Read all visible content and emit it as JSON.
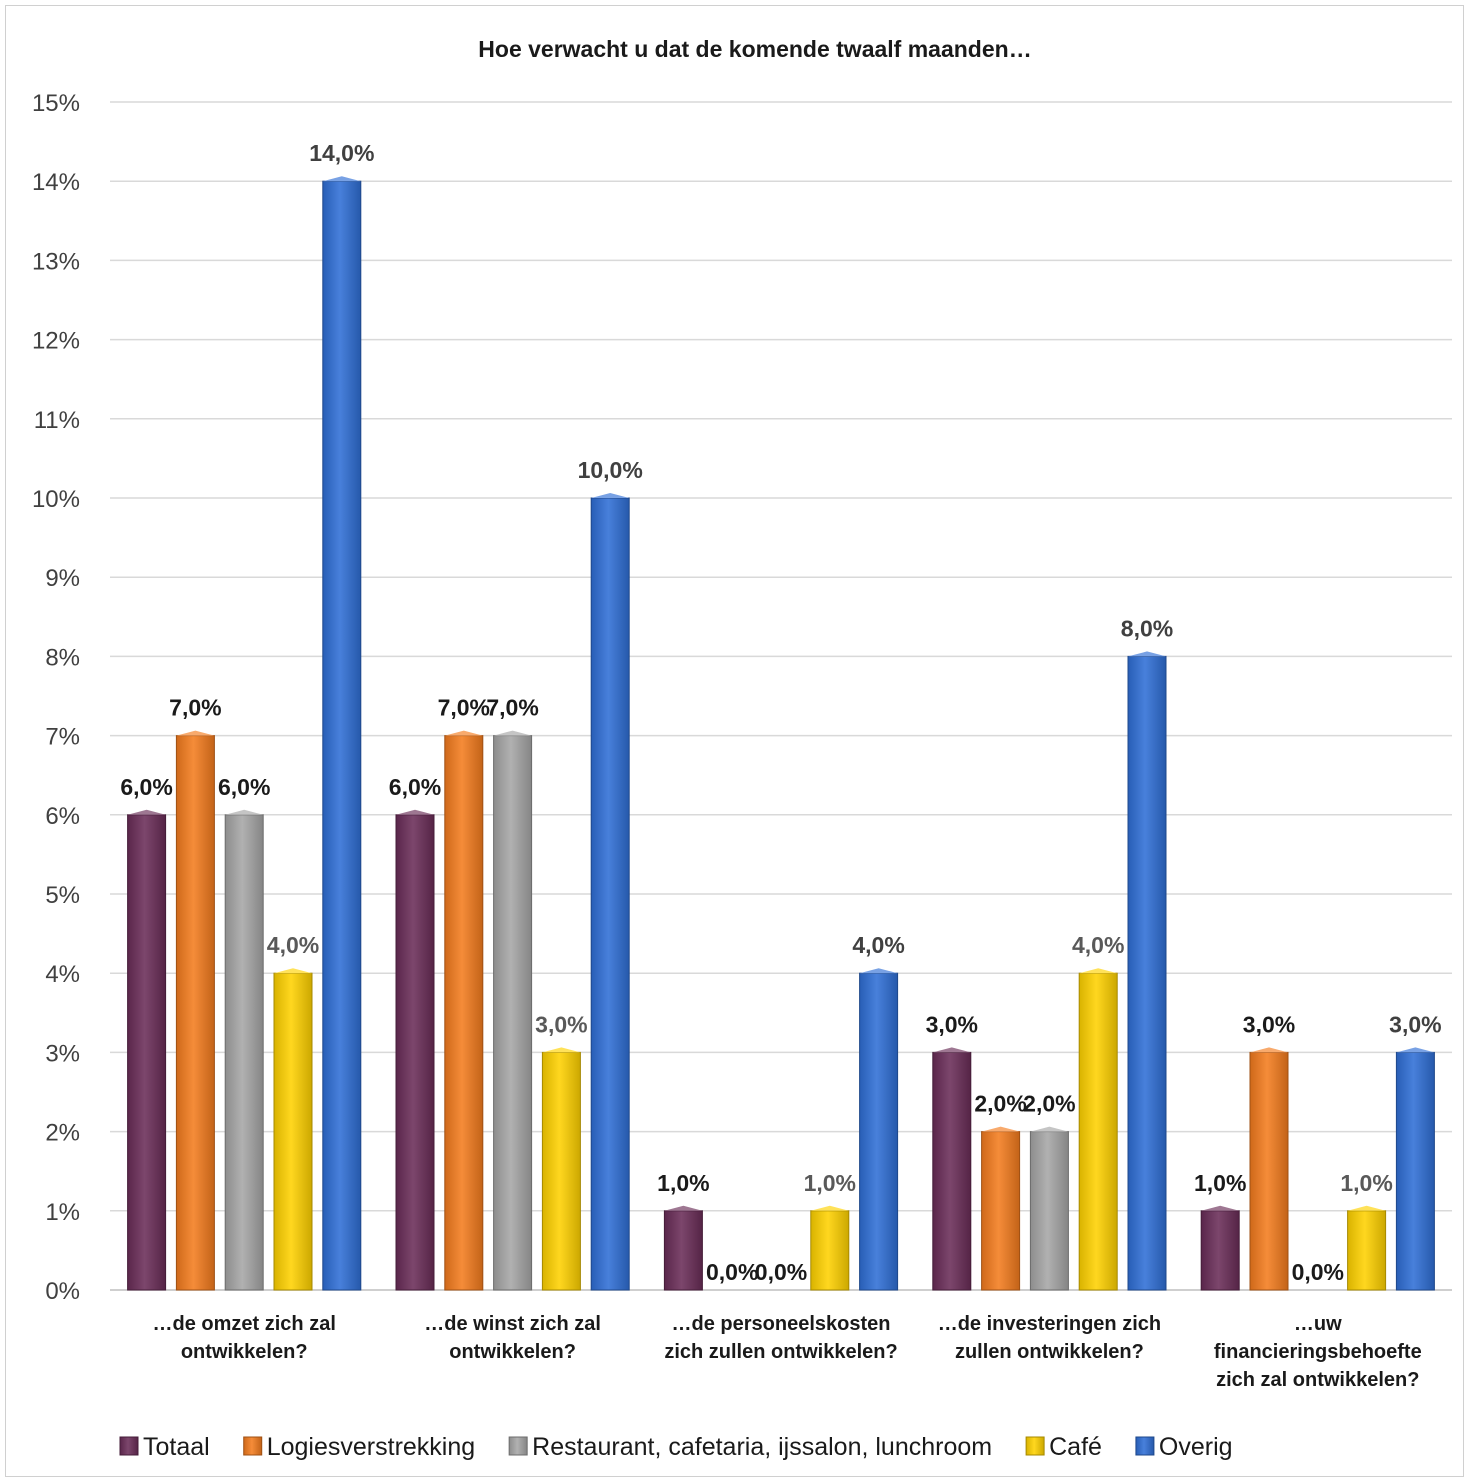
{
  "chart_data": {
    "type": "bar",
    "title": "Hoe verwacht u dat de komende twaalf maanden…",
    "xlabel": "",
    "ylabel": "",
    "ylim": [
      0,
      15
    ],
    "y_unit": "%",
    "y_ticks": [
      "0%",
      "1%",
      "2%",
      "3%",
      "4%",
      "5%",
      "6%",
      "7%",
      "8%",
      "9%",
      "10%",
      "11%",
      "12%",
      "13%",
      "14%",
      "15%"
    ],
    "grid": true,
    "legend_position": "bottom",
    "categories": [
      [
        "…de omzet  zich zal",
        "ontwikkelen?"
      ],
      [
        "…de winst  zich zal",
        "ontwikkelen?"
      ],
      [
        "…de personeelskosten",
        "zich zullen ontwikkelen?"
      ],
      [
        "…de investeringen  zich",
        "zullen ontwikkelen?"
      ],
      [
        "…uw",
        "financieringsbehoefte",
        "zich zal ontwikkelen?"
      ]
    ],
    "series": [
      {
        "name": "Totaal",
        "color": "#6a2d58",
        "values": [
          6.0,
          6.0,
          1.0,
          3.0,
          1.0
        ],
        "labels": [
          "6,0%",
          "6,0%",
          "1,0%",
          "3,0%",
          "1,0%"
        ],
        "label_color": "#1a1a1a"
      },
      {
        "name": "Logiesverstrekking",
        "color": "#f47c1e",
        "values": [
          7.0,
          7.0,
          0.0,
          2.0,
          3.0
        ],
        "labels": [
          "7,0%",
          "7,0%",
          "0,0%",
          "2,0%",
          "3,0%"
        ],
        "label_color": "#1a1a1a"
      },
      {
        "name": "Restaurant, cafetaria, ijssalon, lunchroom",
        "color": "#a6a6a6",
        "values": [
          6.0,
          7.0,
          0.0,
          2.0,
          0.0
        ],
        "labels": [
          "6,0%",
          "7,0%",
          "0,0%",
          "2,0%",
          "0,0%"
        ],
        "label_color": "#1a1a1a"
      },
      {
        "name": "Café",
        "color": "#ffd200",
        "values": [
          4.0,
          3.0,
          1.0,
          4.0,
          1.0
        ],
        "labels": [
          "4,0%",
          "3,0%",
          "1,0%",
          "4,0%",
          "1,0%"
        ],
        "label_color": "#595959"
      },
      {
        "name": "Overig",
        "color": "#2f6fd6",
        "values": [
          14.0,
          10.0,
          4.0,
          8.0,
          3.0
        ],
        "labels": [
          "14,0%",
          "10,0%",
          "4,0%",
          "8,0%",
          "3,0%"
        ],
        "label_color": "#404040"
      }
    ]
  }
}
